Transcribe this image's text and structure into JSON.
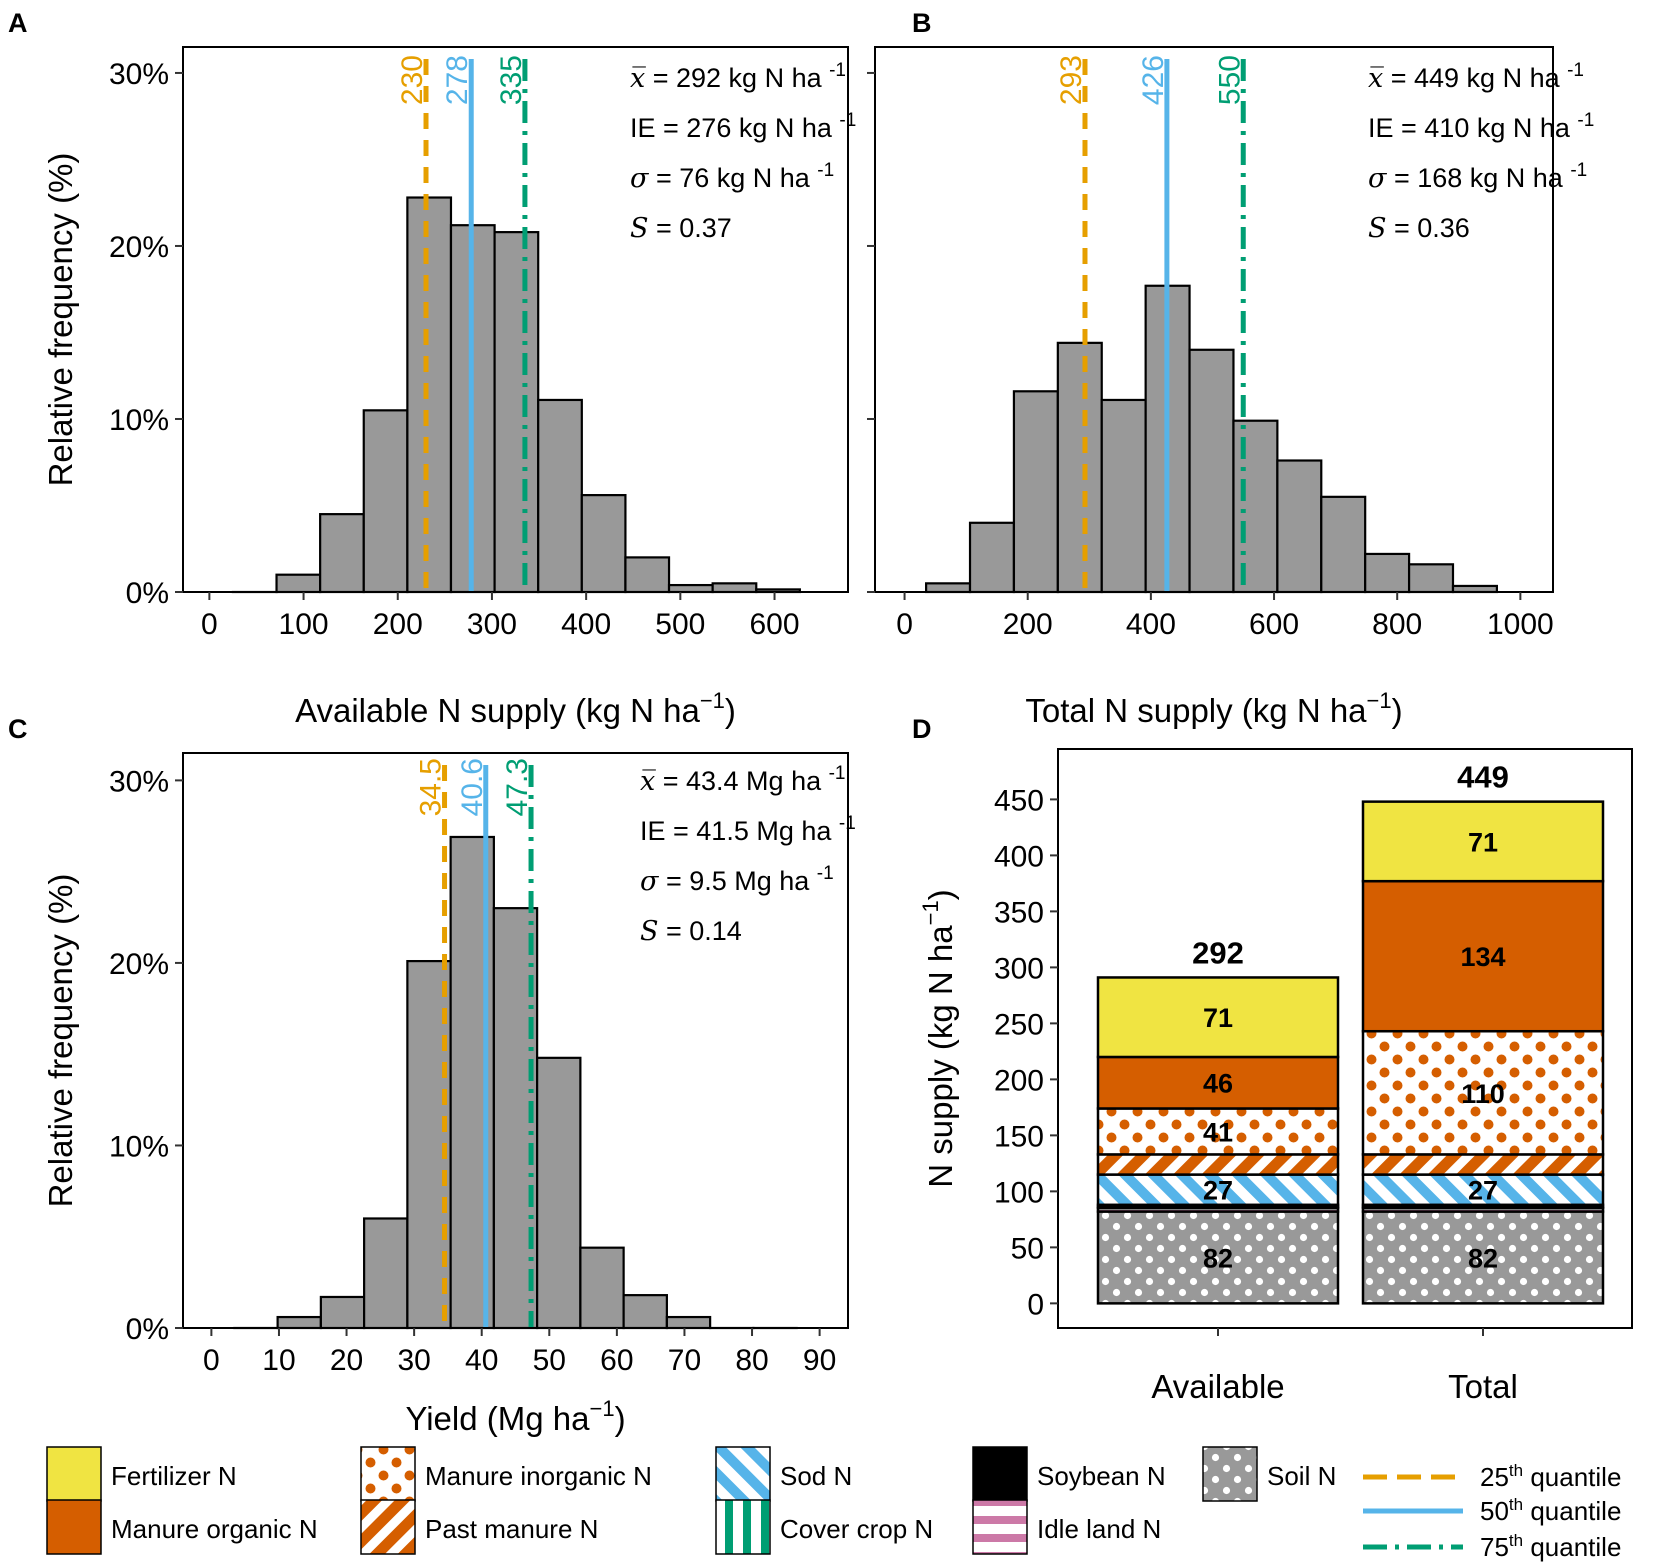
{
  "colors": {
    "bar": "#999999",
    "q25": "#E69F00",
    "q50": "#56B4E9",
    "q75": "#009E73",
    "fertilizer": "#F0E442",
    "manure": "#D55E00",
    "soil": "#999999",
    "idle": "#CC79A7"
  },
  "chart_data": [
    {
      "panel": "A",
      "type": "bar",
      "xlabel": "Available N supply (kg N ha",
      "xlabel_sup": "−1",
      "xlabel_end": ")",
      "ylabel": "Relative frequency (%)",
      "xlim": [
        -28,
        678
      ],
      "ylim": [
        0,
        31.5
      ],
      "xticks": [
        0,
        100,
        200,
        300,
        400,
        500,
        600
      ],
      "yticks": [
        0,
        10,
        20,
        30
      ],
      "ytick_labels": [
        "0%",
        "10%",
        "20%",
        "30%"
      ],
      "bin_start": 25,
      "bin_width": 46.3,
      "values": [
        0,
        1,
        4.5,
        10.5,
        22.8,
        21.2,
        20.8,
        11.1,
        5.6,
        2.0,
        0.4,
        0.5,
        0.15
      ],
      "quantiles": [
        {
          "name": "25th",
          "value": 230,
          "label": "230"
        },
        {
          "name": "50th",
          "value": 278,
          "label": "278"
        },
        {
          "name": "75th",
          "value": 335,
          "label": "335"
        }
      ],
      "stats": [
        {
          "sym": "x̅",
          "text": " = 292 kg N ha ",
          "sup": "-1"
        },
        {
          "sym": "IE",
          "text": "  = 276 kg N ha ",
          "sup": "-1"
        },
        {
          "sym": "σ",
          "text": " = 76 kg N ha ",
          "sup": "-1"
        },
        {
          "sym": "S",
          "text": " =  0.37",
          "sup": ""
        }
      ]
    },
    {
      "panel": "B",
      "type": "bar",
      "xlabel": "Total N supply (kg N ha",
      "xlabel_sup": "−1",
      "xlabel_end": ")",
      "ylabel": "",
      "xlim": [
        -48,
        1053
      ],
      "ylim": [
        0,
        31.5
      ],
      "xticks": [
        0,
        200,
        400,
        600,
        800,
        1000
      ],
      "yticks": [
        0,
        10,
        20,
        30
      ],
      "ytick_labels": [],
      "bin_start": 35,
      "bin_width": 71.3,
      "values": [
        0.5,
        4,
        11.6,
        14.4,
        11.1,
        17.7,
        14,
        9.9,
        7.6,
        5.5,
        2.2,
        1.6,
        0.35
      ],
      "quantiles": [
        {
          "name": "25th",
          "value": 293,
          "label": "293"
        },
        {
          "name": "50th",
          "value": 426,
          "label": "426"
        },
        {
          "name": "75th",
          "value": 550,
          "label": "550"
        }
      ],
      "stats": [
        {
          "sym": "x̅",
          "text": " = 449 kg N ha ",
          "sup": "-1"
        },
        {
          "sym": "IE",
          "text": "  = 410 kg N ha ",
          "sup": "-1"
        },
        {
          "sym": "σ",
          "text": " = 168 kg N ha ",
          "sup": "-1"
        },
        {
          "sym": "S",
          "text": " =  0.36",
          "sup": ""
        }
      ]
    },
    {
      "panel": "C",
      "type": "bar",
      "xlabel": "Yield (Mg ha",
      "xlabel_sup": "−1",
      "xlabel_end": ")",
      "ylabel": "Relative frequency (%)",
      "xlim": [
        -4.2,
        94.2
      ],
      "ylim": [
        0,
        31.5
      ],
      "xticks": [
        0,
        10,
        20,
        30,
        40,
        50,
        60,
        70,
        80,
        90
      ],
      "yticks": [
        0,
        10,
        20,
        30
      ],
      "ytick_labels": [
        "0%",
        "10%",
        "20%",
        "30%"
      ],
      "bin_start": 3.4,
      "bin_width": 6.4,
      "values": [
        0,
        0.6,
        1.7,
        6,
        20.1,
        26.9,
        23,
        14.8,
        4.4,
        1.8,
        0.6,
        0,
        0
      ],
      "quantiles": [
        {
          "name": "25th",
          "value": 34.5,
          "label": "34.5"
        },
        {
          "name": "50th",
          "value": 40.6,
          "label": "40.6"
        },
        {
          "name": "75th",
          "value": 47.3,
          "label": "47.3"
        }
      ],
      "stats": [
        {
          "sym": "x̅",
          "text": " = 43.4 Mg ha ",
          "sup": "-1"
        },
        {
          "sym": "IE",
          "text": "  = 41.5 Mg ha ",
          "sup": "-1"
        },
        {
          "sym": "σ",
          "text": " = 9.5 Mg ha ",
          "sup": "-1"
        },
        {
          "sym": "S",
          "text": " =  0.14",
          "sup": ""
        }
      ]
    },
    {
      "panel": "D",
      "type": "bar",
      "stacked": true,
      "categories": [
        "Available",
        "Total"
      ],
      "ylabel": "N supply (kg N ha",
      "ylabel_sup": "−1",
      "ylabel_end": ")",
      "ylim": [
        -22,
        495
      ],
      "yticks": [
        0,
        50,
        100,
        150,
        200,
        250,
        300,
        350,
        400,
        450
      ],
      "totals": [
        "292",
        "449"
      ],
      "series": [
        {
          "name": "Soil N",
          "values": [
            82,
            82
          ],
          "labels": [
            "82",
            "82"
          ],
          "pattern": "soil"
        },
        {
          "name": "Idle land N",
          "values": [
            3,
            3
          ],
          "labels": [
            "",
            ""
          ],
          "pattern": "idle"
        },
        {
          "name": "Cover crop N",
          "values": [
            1,
            1
          ],
          "labels": [
            "",
            ""
          ],
          "pattern": "cover"
        },
        {
          "name": "Soybean N",
          "values": [
            2,
            2
          ],
          "labels": [
            "",
            ""
          ],
          "pattern": "soy"
        },
        {
          "name": "Sod N",
          "values": [
            27,
            27
          ],
          "labels": [
            "27",
            "27"
          ],
          "pattern": "sod"
        },
        {
          "name": "Past manure N",
          "values": [
            18,
            18
          ],
          "labels": [
            "",
            ""
          ],
          "pattern": "past"
        },
        {
          "name": "Manure inorganic N",
          "values": [
            41,
            110
          ],
          "labels": [
            "41",
            "110"
          ],
          "pattern": "inorg"
        },
        {
          "name": "Manure organic N",
          "values": [
            46,
            134
          ],
          "labels": [
            "46",
            "134"
          ],
          "pattern": "org"
        },
        {
          "name": "Fertilizer N",
          "values": [
            71,
            71
          ],
          "labels": [
            "71",
            "71"
          ],
          "pattern": "fert"
        }
      ]
    }
  ],
  "panel_letters": [
    "A",
    "B",
    "C",
    "D"
  ],
  "legend": {
    "items": [
      {
        "label": "Fertilizer N",
        "pattern": "fert"
      },
      {
        "label": "Manure organic N",
        "pattern": "org"
      },
      {
        "label": "Manure inorganic N",
        "pattern": "inorg"
      },
      {
        "label": "Past manure N",
        "pattern": "past"
      },
      {
        "label": "Sod N",
        "pattern": "sod"
      },
      {
        "label": "Cover crop N",
        "pattern": "cover"
      },
      {
        "label": "Soybean N",
        "pattern": "soy"
      },
      {
        "label": "Idle land N",
        "pattern": "idle"
      },
      {
        "label": "Soil N",
        "pattern": "soil"
      }
    ],
    "lines": [
      {
        "num": "25",
        "sup": "th",
        "text": " quantile"
      },
      {
        "num": "50",
        "sup": "th",
        "text": " quantile"
      },
      {
        "num": "75",
        "sup": "th",
        "text": " quantile"
      }
    ]
  }
}
